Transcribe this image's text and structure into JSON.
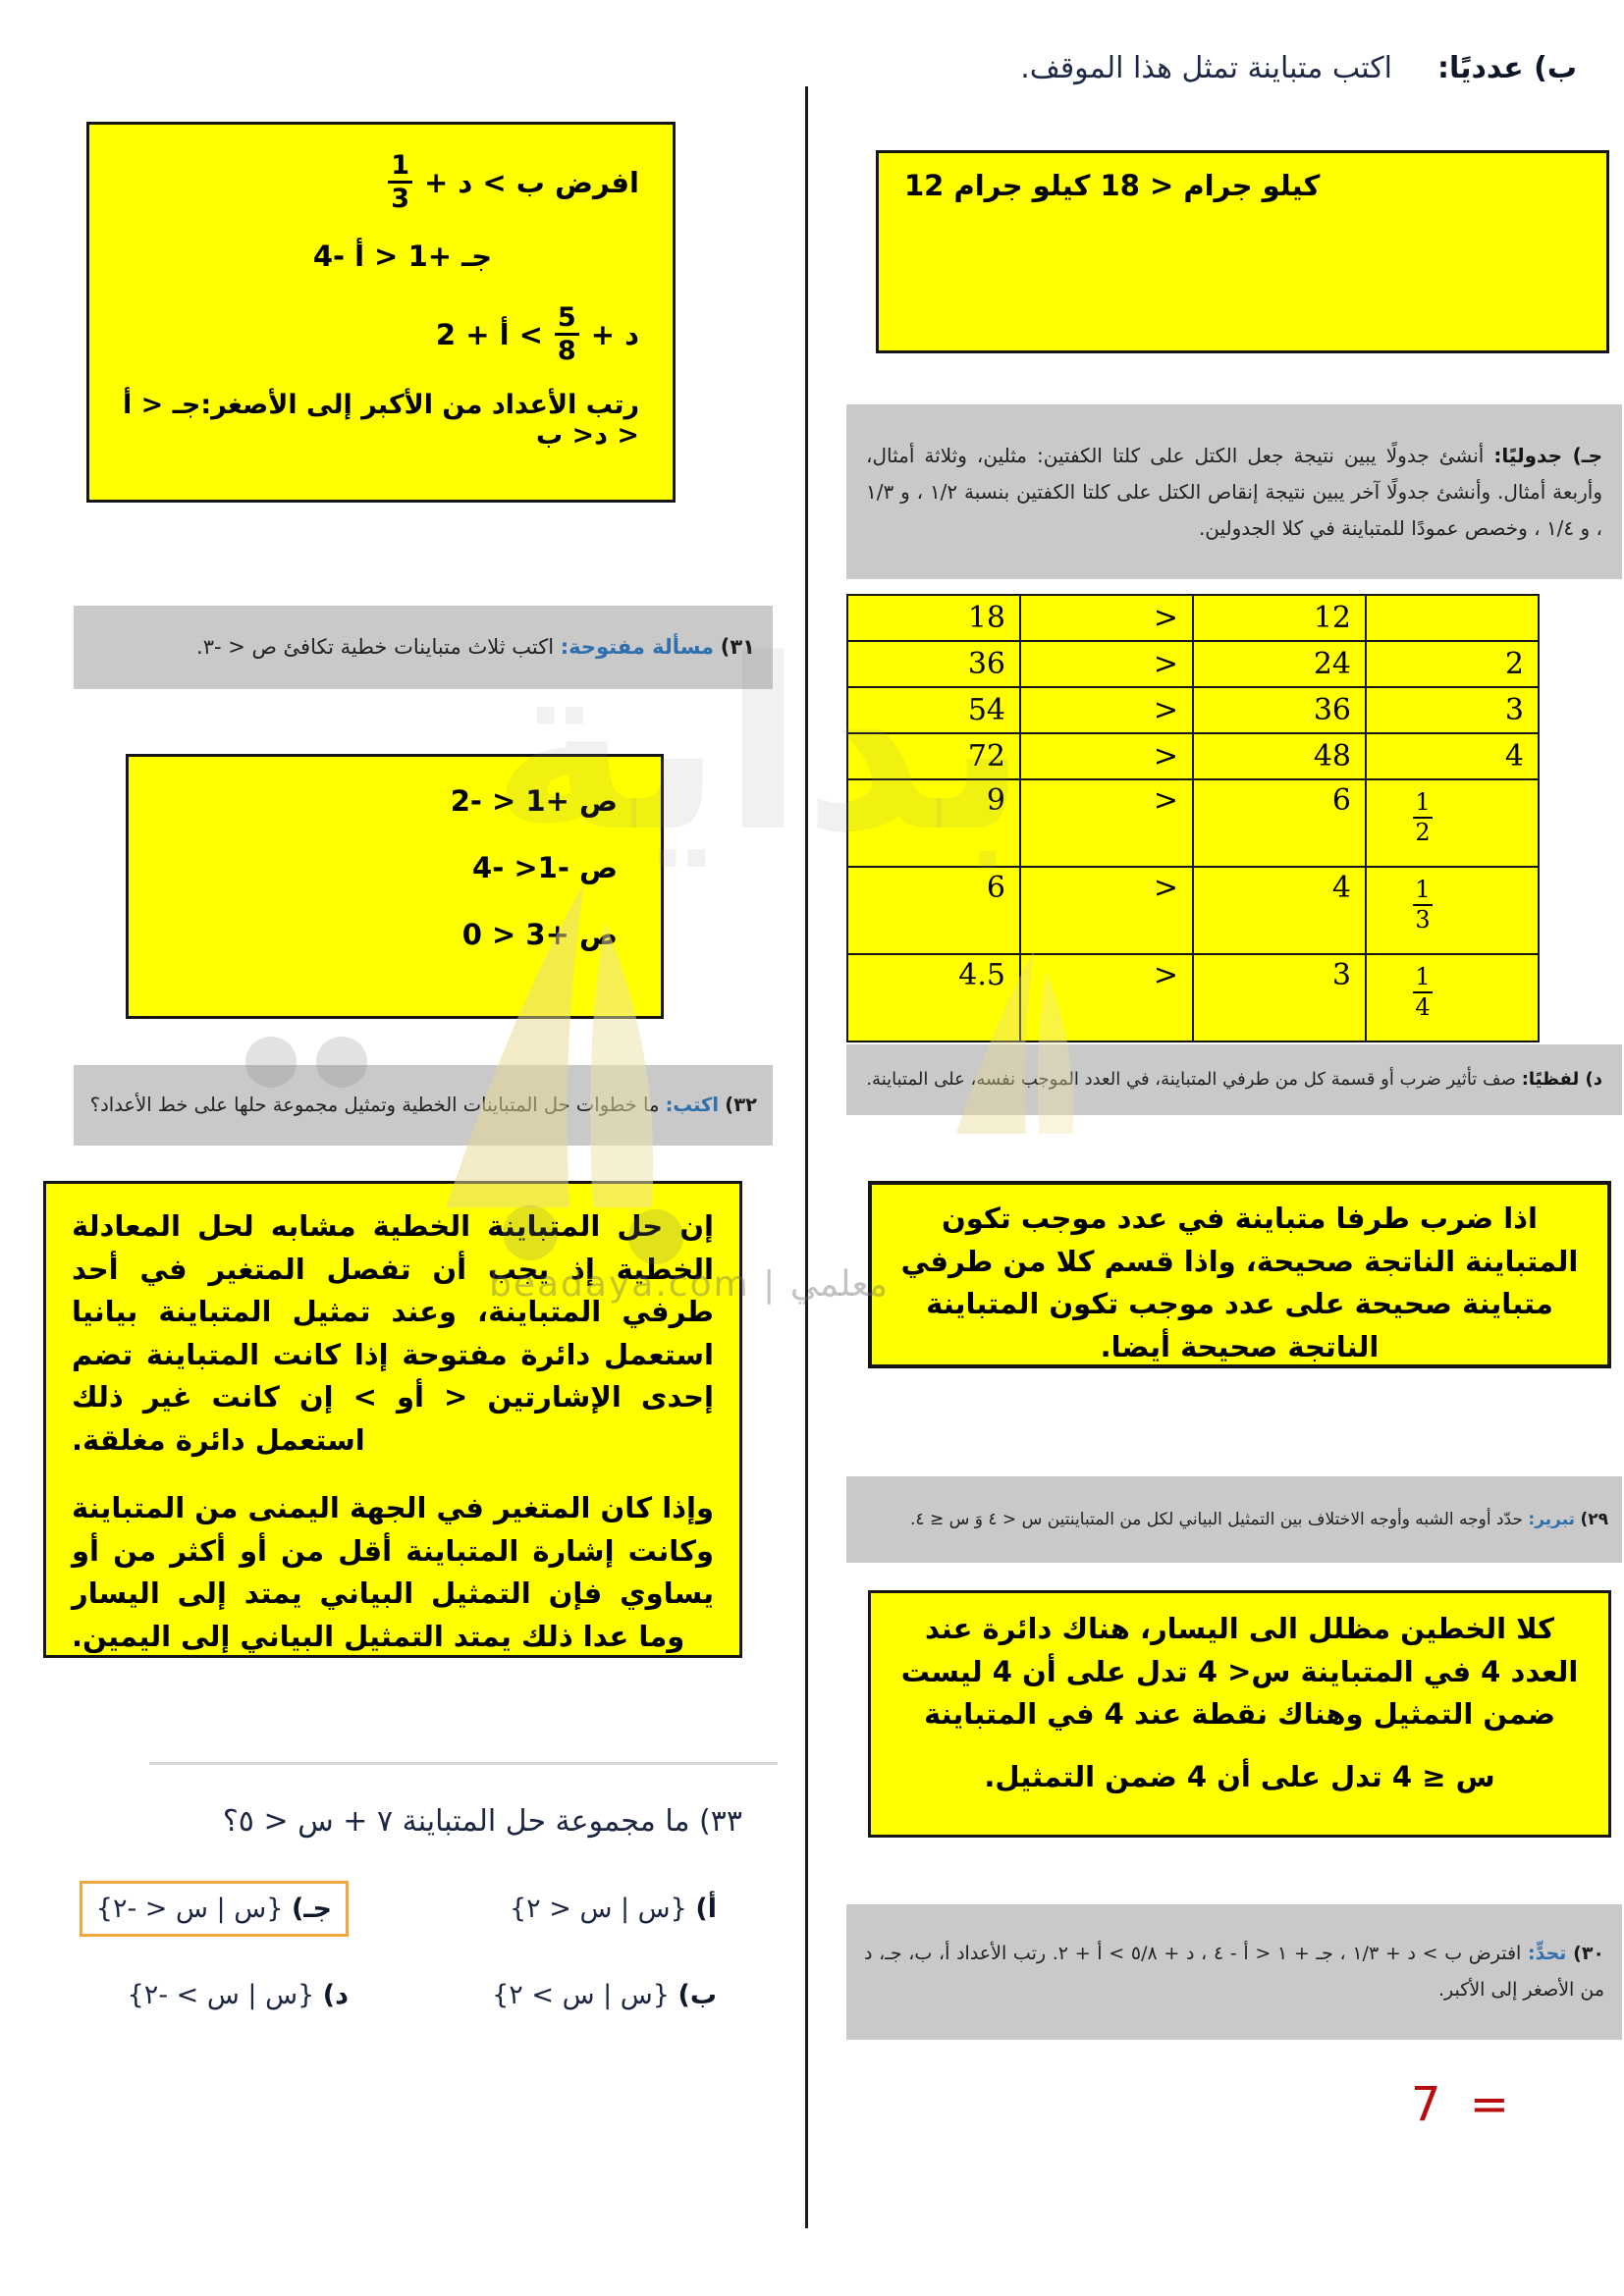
{
  "page": {
    "result_label": "7 ="
  },
  "watermark": {
    "site_text": "beadaya.com | معلمي",
    "big_text": "بداية"
  },
  "right": {
    "part_b_label": "ب) عدديًا:",
    "part_b_text": "اكتب متباينة تمثل هذا الموقف.",
    "part_b_answer": "12 كيلو جرام < 18 كيلو جرام",
    "part_c_label": "جـ) جدوليًا:",
    "part_c_text": "أنشئ جدولًا يبين نتيجة جعل الكتل على كلتا الكفتين: مثلين، وثلاثة أمثال، وأربعة أمثال. وأنشئ جدولًا آخر يبين نتيجة إنقاص الكتل على كلتا الكفتين بنسبة ١/٢ ، و ١/٣ ، و ١/٤ ، وخصص عمودًا للمتباينة في كلا الجدولين.",
    "table": {
      "rows": [
        {
          "a": "18",
          "op": ">",
          "b": "12",
          "c": ""
        },
        {
          "a": "36",
          "op": ">",
          "b": "24",
          "c": "2"
        },
        {
          "a": "54",
          "op": ">",
          "b": "36",
          "c": "3"
        },
        {
          "a": "72",
          "op": ">",
          "b": "48",
          "c": "4"
        },
        {
          "a": "9",
          "op": ">",
          "b": "6",
          "c": {
            "num": "1",
            "den": "2"
          }
        },
        {
          "a": "6",
          "op": ">",
          "b": "4",
          "c": {
            "num": "1",
            "den": "3"
          }
        },
        {
          "a": "4.5",
          "op": ">",
          "b": "3",
          "c": {
            "num": "1",
            "den": "4"
          }
        }
      ]
    },
    "part_d_label": "د) لفظيًا:",
    "part_d_text": "صف تأثير ضرب أو قسمة كل من طرفي المتباينة، في العدد الموجب نفسه، على المتباينة.",
    "note_positive": "اذا ضرب طرفا متباينة في عدد موجب تكون المتباينة الناتجة صحيحة، واذا قسم كلا من طرفي متباينة صحيحة على عدد موجب تكون المتباينة الناتجة صحيحة أيضا.",
    "q29_num": "٢٩)",
    "q29_label": "تبرير:",
    "q29_text": "حدّد أوجه الشبه وأوجه الاختلاف بين التمثيل البياني لكل من المتباينتين س < ٤ وَ س ≤ ٤.",
    "q29_answer_p1": "كلا الخطين مظلل الى اليسار، هناك دائرة عند العدد 4 في المتباينة س< 4 تدل على أن 4 ليست ضمن التمثيل وهناك نقطة عند 4 في المتباينة",
    "q29_answer_p2": "س ≤ 4 تدل على أن 4 ضمن التمثيل.",
    "q30_num": "٣٠)",
    "q30_label": "تحدٍّ:",
    "q30_text": "افترض ب > د + ١/٣ ، جـ + ١ < أ - ٤ ، د + ٥/٨ > أ + ٢. رتب الأعداد أ، ب، جـ، د من الأصغر إلى الأكبر."
  },
  "left": {
    "q30_answer": {
      "line1_pre": "افرض ب > د +",
      "line1_num": "1",
      "line1_den": "3",
      "line2": "جـ +1 < أ -4",
      "line3_pre": "د +",
      "line3_num": "5",
      "line3_den": "8",
      "line3_post": "> أ + 2",
      "line4": "رتب الأعداد من الأكبر إلى الأصغر:جـ < أ < د< ب"
    },
    "q31_num": "٣١)",
    "q31_label": "مسألة مفتوحة:",
    "q31_text": "اكتب ثلاث متباينات خطية تكافئ ص < -٣.",
    "q31_answers": [
      "ص +1 < -2",
      "ص -1< -4",
      "ص +3 < 0"
    ],
    "q32_num": "٣٢)",
    "q32_label": "اكتب:",
    "q32_text": "ما خطوات حل المتباينات الخطية وتمثيل مجموعة حلها على خط الأعداد؟",
    "q32_answer_p1": "إن حل المتباينة الخطية مشابه لحل المعادلة الخطية إذ يجب أن تفصل المتغير في أحد طرفي المتباينة، وعند تمثيل المتباينة بيانيا استعمل دائرة مفتوحة إذا كانت المتباينة تضم إحدى الإشارتين < أو > إن كانت غير ذلك استعمل دائرة مغلقة.",
    "q32_answer_p2": "وإذا كان المتغير في الجهة اليمنى من المتباينة وكانت إشارة المتباينة أقل من أو أكثر من أو يساوي فإن التمثيل البياني يمتد إلى اليسار وما عدا ذلك يمتد التمثيل البياني إلى اليمين.",
    "q33_text": "٣٣) ما مجموعة حل المتباينة ٧ + س < ٥؟",
    "choices": [
      {
        "key": "أ)",
        "text": "{س | س < ٢}",
        "correct": false
      },
      {
        "key": "جـ)",
        "text": "{س | س < -٢}",
        "correct": true
      },
      {
        "key": "ب)",
        "text": "{س | س > ٢}",
        "correct": false
      },
      {
        "key": "د)",
        "text": "{س | س > -٢}",
        "correct": false
      }
    ]
  }
}
